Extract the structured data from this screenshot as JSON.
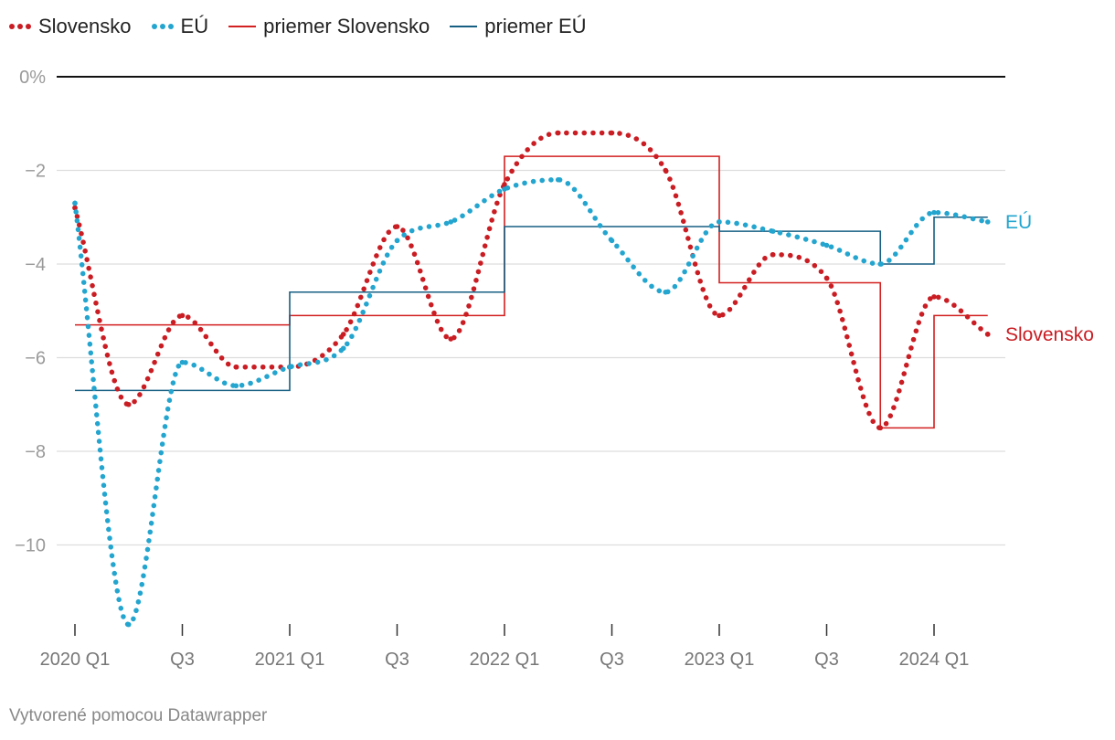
{
  "legend": {
    "items": [
      {
        "label": "Slovensko",
        "color": "#c91d23",
        "style": "dotted"
      },
      {
        "label": "EÚ",
        "color": "#23a5cf",
        "style": "dotted"
      },
      {
        "label": "priemer Slovensko",
        "color": "#d32020",
        "style": "solid"
      },
      {
        "label": "priemer EÚ",
        "color": "#165f83",
        "style": "solid"
      }
    ]
  },
  "footer": {
    "credit": "Vytvorené pomocou Datawrapper"
  },
  "chart_data": {
    "type": "line",
    "title": "",
    "xlabel": "",
    "ylabel": "",
    "ylim": [
      -11.7,
      0
    ],
    "grid": true,
    "legend_position": "top-left",
    "y_ticks": [
      {
        "value": 0,
        "label": "0%"
      },
      {
        "value": -2,
        "label": "−2"
      },
      {
        "value": -4,
        "label": "−4"
      },
      {
        "value": -6,
        "label": "−6"
      },
      {
        "value": -8,
        "label": "−8"
      },
      {
        "value": -10,
        "label": "−10"
      }
    ],
    "x_ticks": [
      {
        "index": 0,
        "label": "2020 Q1"
      },
      {
        "index": 2,
        "label": "Q3"
      },
      {
        "index": 4,
        "label": "2021 Q1"
      },
      {
        "index": 6,
        "label": "Q3"
      },
      {
        "index": 8,
        "label": "2022 Q1"
      },
      {
        "index": 10,
        "label": "Q3"
      },
      {
        "index": 12,
        "label": "2023 Q1"
      },
      {
        "index": 14,
        "label": "Q3"
      },
      {
        "index": 16,
        "label": "2024 Q1"
      }
    ],
    "series": [
      {
        "name": "Slovensko",
        "style": "dotted",
        "color": "#c91d23",
        "end_label": "Slovensko",
        "values": [
          -2.8,
          -7.0,
          -5.1,
          -6.2,
          -6.2,
          -5.5,
          -3.2,
          -5.6,
          -2.3,
          -1.2,
          -1.2,
          -2.0,
          -5.1,
          -3.8,
          -4.3,
          -7.5,
          -4.7,
          -5.5
        ]
      },
      {
        "name": "EÚ",
        "style": "dotted",
        "color": "#23a5cf",
        "end_label": "EÚ",
        "values": [
          -2.7,
          -11.7,
          -6.1,
          -6.6,
          -6.2,
          -5.8,
          -3.5,
          -3.1,
          -2.4,
          -2.2,
          -3.5,
          -4.6,
          -3.1,
          -3.3,
          -3.6,
          -4.0,
          -2.9,
          -3.1
        ]
      },
      {
        "name": "priemer Slovensko",
        "style": "step",
        "color": "#d32020",
        "segments": [
          {
            "from": 0,
            "to": 4,
            "value": -5.3
          },
          {
            "from": 4,
            "to": 8,
            "value": -5.1
          },
          {
            "from": 8,
            "to": 12,
            "value": -1.7
          },
          {
            "from": 12,
            "to": 15,
            "value": -4.4
          },
          {
            "from": 15,
            "to": 16,
            "value": -7.5
          },
          {
            "from": 16,
            "to": 17,
            "value": -5.1
          }
        ]
      },
      {
        "name": "priemer EÚ",
        "style": "step",
        "color": "#165f83",
        "segments": [
          {
            "from": 0,
            "to": 4,
            "value": -6.7
          },
          {
            "from": 4,
            "to": 8,
            "value": -4.6
          },
          {
            "from": 8,
            "to": 12,
            "value": -3.2
          },
          {
            "from": 12,
            "to": 15,
            "value": -3.3
          },
          {
            "from": 15,
            "to": 16,
            "value": -4.0
          },
          {
            "from": 16,
            "to": 17,
            "value": -3.0
          }
        ]
      }
    ]
  }
}
